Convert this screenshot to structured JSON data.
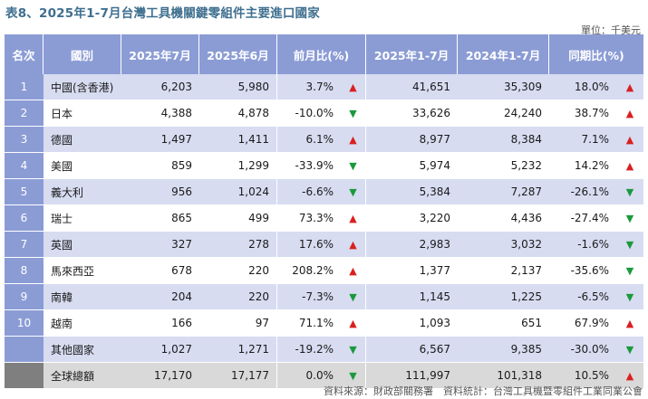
{
  "title": "表8、2025年1-7月台灣工具機關鍵零組件主要進口國家",
  "unit": "單位：千美元",
  "headers": {
    "rank": "名次",
    "country": "國別",
    "jul2025": "2025年7月",
    "jun2025": "2025年6月",
    "mom": "前月比(%)",
    "ytd2025": "2025年1-7月",
    "ytd2024": "2024年1-7月",
    "yoy": "同期比(%)"
  },
  "rows": [
    {
      "rank": "1",
      "country": "中國(含香港)",
      "jul": "6,203",
      "jun": "5,980",
      "mom": "3.7%",
      "mom_dir": "▲",
      "ytd25": "41,651",
      "ytd24": "35,309",
      "yoy": "18.0%",
      "yoy_dir": "▲"
    },
    {
      "rank": "2",
      "country": "日本",
      "jul": "4,388",
      "jun": "4,878",
      "mom": "-10.0%",
      "mom_dir": "▼",
      "ytd25": "33,626",
      "ytd24": "24,240",
      "yoy": "38.7%",
      "yoy_dir": "▲"
    },
    {
      "rank": "3",
      "country": "德國",
      "jul": "1,497",
      "jun": "1,411",
      "mom": "6.1%",
      "mom_dir": "▲",
      "ytd25": "8,977",
      "ytd24": "8,384",
      "yoy": "7.1%",
      "yoy_dir": "▲"
    },
    {
      "rank": "4",
      "country": "美國",
      "jul": "859",
      "jun": "1,299",
      "mom": "-33.9%",
      "mom_dir": "▼",
      "ytd25": "5,974",
      "ytd24": "5,232",
      "yoy": "14.2%",
      "yoy_dir": "▲"
    },
    {
      "rank": "5",
      "country": "義大利",
      "jul": "956",
      "jun": "1,024",
      "mom": "-6.6%",
      "mom_dir": "▼",
      "ytd25": "5,384",
      "ytd24": "7,287",
      "yoy": "-26.1%",
      "yoy_dir": "▼"
    },
    {
      "rank": "6",
      "country": "瑞士",
      "jul": "865",
      "jun": "499",
      "mom": "73.3%",
      "mom_dir": "▲",
      "ytd25": "3,220",
      "ytd24": "4,436",
      "yoy": "-27.4%",
      "yoy_dir": "▼"
    },
    {
      "rank": "7",
      "country": "英國",
      "jul": "327",
      "jun": "278",
      "mom": "17.6%",
      "mom_dir": "▲",
      "ytd25": "2,983",
      "ytd24": "3,032",
      "yoy": "-1.6%",
      "yoy_dir": "▼"
    },
    {
      "rank": "8",
      "country": "馬來西亞",
      "jul": "678",
      "jun": "220",
      "mom": "208.2%",
      "mom_dir": "▲",
      "ytd25": "1,377",
      "ytd24": "2,137",
      "yoy": "-35.6%",
      "yoy_dir": "▼"
    },
    {
      "rank": "9",
      "country": "南韓",
      "jul": "204",
      "jun": "220",
      "mom": "-7.3%",
      "mom_dir": "▼",
      "ytd25": "1,145",
      "ytd24": "1,225",
      "yoy": "-6.5%",
      "yoy_dir": "▼"
    },
    {
      "rank": "10",
      "country": "越南",
      "jul": "166",
      "jun": "97",
      "mom": "71.1%",
      "mom_dir": "▲",
      "ytd25": "1,093",
      "ytd24": "651",
      "yoy": "67.9%",
      "yoy_dir": "▲"
    },
    {
      "rank": "",
      "country": "其他國家",
      "jul": "1,027",
      "jun": "1,271",
      "mom": "-19.2%",
      "mom_dir": "▼",
      "ytd25": "6,567",
      "ytd24": "9,385",
      "yoy": "-30.0%",
      "yoy_dir": "▼"
    },
    {
      "rank": "",
      "country": "全球總額",
      "jul": "17,170",
      "jun": "17,177",
      "mom": "0.0%",
      "mom_dir": "▼",
      "ytd25": "111,997",
      "ytd24": "101,318",
      "yoy": "10.5%",
      "yoy_dir": "▲"
    }
  ],
  "colors": {
    "header_bg": "#8b9cd5",
    "band_bg": "#d7dcf1",
    "total_bg": "#d9d9d9",
    "up": "#d92020",
    "down": "#1a9a3c",
    "title": "#3f6f8f"
  },
  "source": "資料來源：財政部關務署　資料統計：台灣工具機暨零組件工業同業公會"
}
